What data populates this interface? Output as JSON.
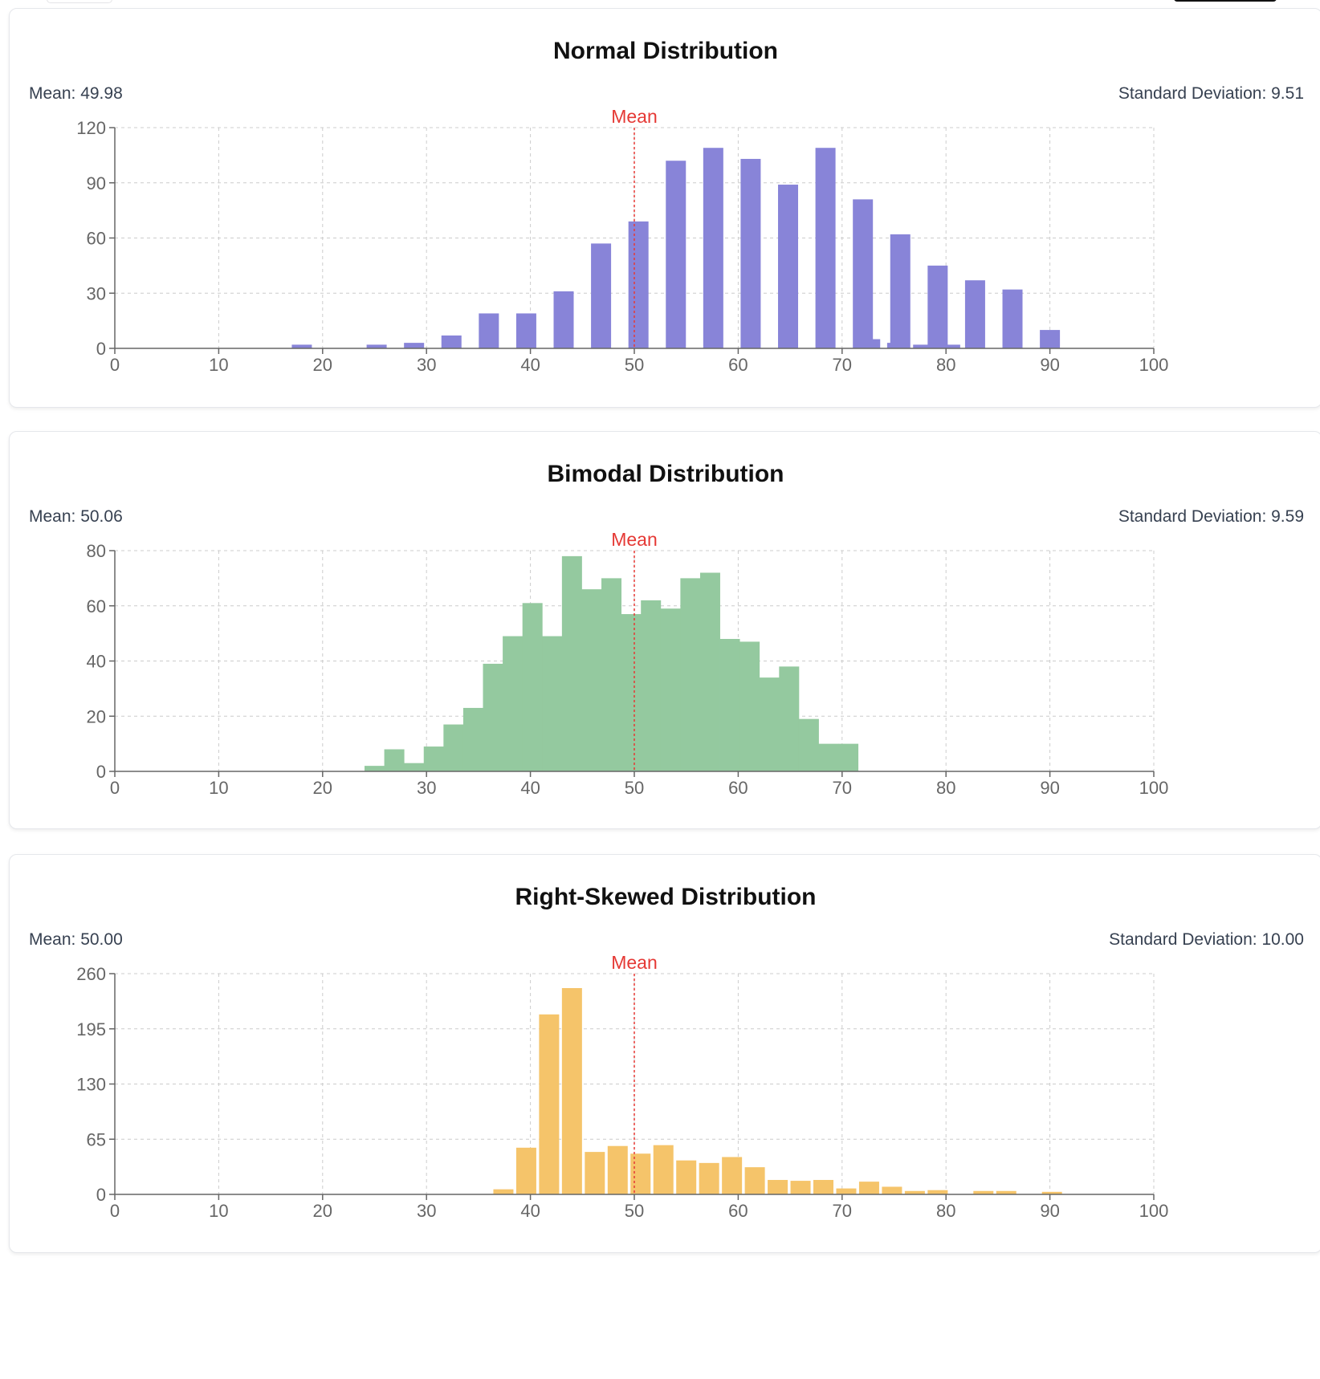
{
  "chart_data": [
    {
      "type": "bar",
      "title": "Normal Distribution",
      "mean_text": "Mean: 49.98",
      "std_text": "Standard Deviation: 9.51",
      "mean_label": "Mean",
      "mean_line_x": 50,
      "bar_color": "#8884d8",
      "bin_width": 3.6,
      "x": [
        18,
        21.6,
        25.2,
        28.8,
        32.4,
        36,
        39.6,
        43.2,
        46.8,
        50.4,
        54,
        57.6,
        61.2,
        64.8,
        68.4,
        72,
        75.6,
        79.2,
        82.8,
        86.4,
        90
      ],
      "values": [
        2,
        0,
        2,
        3,
        7,
        19,
        19,
        31,
        57,
        69,
        102,
        109,
        103,
        89,
        109,
        81,
        62,
        45,
        37,
        32,
        10
      ],
      "extra_x": [
        72.7,
        75.3,
        77.8,
        80.4
      ],
      "extra_values": [
        5,
        3,
        2,
        2
      ],
      "xlim": [
        0,
        100
      ],
      "xticks": [
        0,
        10,
        20,
        30,
        40,
        50,
        60,
        70,
        80,
        90,
        100
      ],
      "ylim": [
        0,
        120
      ],
      "yticks": [
        0,
        30,
        60,
        90,
        120
      ],
      "grid": true
    },
    {
      "type": "bar",
      "title": "Bimodal Distribution",
      "mean_text": "Mean: 50.06",
      "std_text": "Standard Deviation: 9.59",
      "mean_label": "Mean",
      "mean_line_x": 50,
      "bar_color": "#94c99f",
      "x": [
        25,
        26.9,
        28.8,
        30.7,
        32.6,
        34.5,
        36.4,
        38.3,
        40.2,
        42.1,
        44,
        45.9,
        47.8,
        49.7,
        51.6,
        53.5,
        55.4,
        57.3,
        59.2,
        61.1,
        63,
        64.9,
        66.8,
        68.7,
        70.6
      ],
      "values": [
        2,
        8,
        3,
        9,
        17,
        23,
        39,
        49,
        61,
        49,
        78,
        66,
        70,
        57,
        62,
        59,
        70,
        72,
        48,
        47,
        34,
        38,
        19,
        10,
        10
      ],
      "xlim": [
        0,
        100
      ],
      "xticks": [
        0,
        10,
        20,
        30,
        40,
        50,
        60,
        70,
        80,
        90,
        100
      ],
      "ylim": [
        0,
        80
      ],
      "yticks": [
        0,
        20,
        40,
        60,
        80
      ],
      "grid": true
    },
    {
      "type": "bar",
      "title": "Right-Skewed Distribution",
      "mean_text": "Mean: 50.00",
      "std_text": "Standard Deviation: 10.00",
      "mean_label": "Mean",
      "mean_line_x": 50,
      "bar_color": "#f5c46a",
      "x": [
        37.4,
        39.6,
        41.8,
        44,
        46.2,
        48.4,
        50.6,
        52.8,
        55,
        57.2,
        59.4,
        61.6,
        63.8,
        66,
        68.2,
        70.4,
        72.6,
        74.8,
        77,
        79.2,
        81.4,
        83.6,
        85.8,
        88,
        90.2,
        92.4
      ],
      "values": [
        6,
        55,
        212,
        243,
        50,
        57,
        48,
        58,
        40,
        37,
        44,
        32,
        17,
        16,
        17,
        7,
        15,
        9,
        4,
        5,
        0,
        4,
        4,
        0,
        3,
        0
      ],
      "xlim": [
        0,
        100
      ],
      "xticks": [
        0,
        10,
        20,
        30,
        40,
        50,
        60,
        70,
        80,
        90,
        100
      ],
      "ylim": [
        0,
        260
      ],
      "yticks": [
        0,
        65,
        130,
        195,
        260
      ],
      "grid": true
    }
  ]
}
